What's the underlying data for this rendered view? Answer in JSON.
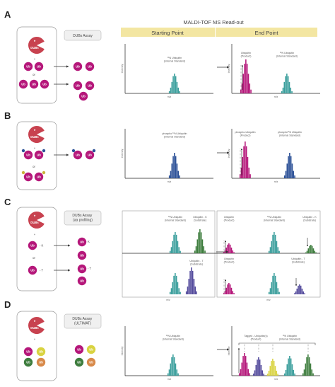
{
  "header": {
    "title": "MALDI-TOF MS Read-out",
    "starting_point": "Starting Point",
    "end_point": "End Point"
  },
  "common": {
    "axis_y": "Intensity",
    "axis_x": "m/z",
    "or": "or",
    "plus": "+",
    "ub": "Ub",
    "dub": "DUBs",
    "star": "*",
    "k": "K",
    "t": "T",
    "dash": "-"
  },
  "colors": {
    "magenta": "#b5177a",
    "teal": "#3a9e9c",
    "blue": "#2a4f96",
    "green": "#3e7d3e",
    "purple": "#534a9c",
    "yellow": "#d9d341",
    "orange": "#d88a4a",
    "header_yellow": "#f3e6a2",
    "dub_red": "#c8424f"
  },
  "panels": [
    {
      "label": "A",
      "assay": "DUBs Assay",
      "start_label": "¹⁵N Ubiquitin\n(Internal Standard)",
      "end_labels": [
        "Ubiquitin\n(Product)",
        "¹⁵N Ubiquitin\n(Internal Standard)"
      ]
    },
    {
      "label": "B",
      "assay": "",
      "start_label": "phospho ¹⁵N Ubiquitin\n(Internal Standard)",
      "end_labels": [
        "phospho-Ubiquitin\n(Product)",
        "phospho¹⁵N Ubiquitin\n(Internal Standard)"
      ]
    },
    {
      "label": "C",
      "assay": "DUBs Assay\n(aa profiling)",
      "start_labels_top": [
        "¹⁵N Ubiquitin\n(Internal Standard)",
        "Ubiquitin - K\n(Substrate)"
      ],
      "start_labels_bottom": [
        "Ubiquitin - T\n(Substrate)"
      ],
      "end_labels_top": [
        "Ubiquitin\n(Product)",
        "¹⁵N Ubiquitin\n(Internal Standard)",
        "Ubiquitin - K\n(Substrate)"
      ],
      "end_labels_bottom": [
        "Ubiquitin\n(Product)",
        "Ubiquitin - T\n(Substrate)"
      ]
    },
    {
      "label": "D",
      "assay": "DUBs Assay\n(ULTIMAT)",
      "start_label": "¹⁵N Ubiquitin\n(Internal Standard)",
      "end_labels": [
        "Tagged - Ubiquitin(s)\n(Product)",
        "¹⁵N Ubiquitin\n(Internal Standard)"
      ]
    }
  ]
}
